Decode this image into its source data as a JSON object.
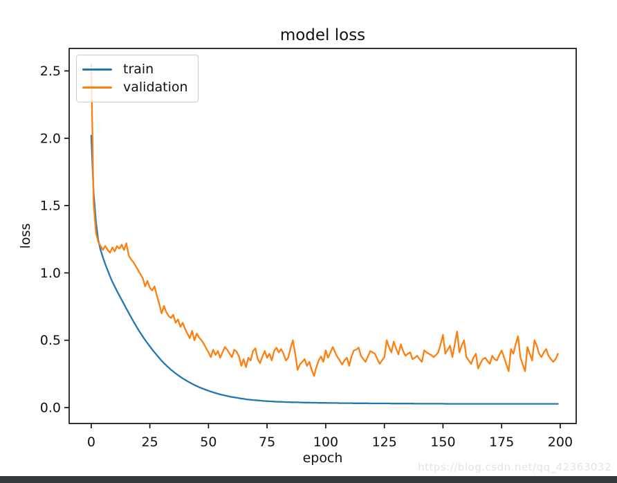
{
  "page": {
    "background": "#ffffff",
    "bottom_bar_color": "#35383c"
  },
  "watermark": {
    "text": "https://blog.csdn.net/qq_42363032",
    "color": "#e2e4e6"
  },
  "chart_data": {
    "type": "line",
    "title": "model loss",
    "xlabel": "epoch",
    "ylabel": "loss",
    "xlim": [
      -9.4,
      206.8
    ],
    "ylim": [
      -0.118,
      2.667
    ],
    "x_ticks": [
      0,
      25,
      50,
      75,
      100,
      125,
      150,
      175,
      200
    ],
    "x_tick_labels": [
      "0",
      "25",
      "50",
      "75",
      "100",
      "125",
      "150",
      "175",
      "200"
    ],
    "y_ticks": [
      0.0,
      0.5,
      1.0,
      1.5,
      2.0,
      2.5
    ],
    "y_tick_labels": [
      "0.0",
      "0.5",
      "1.0",
      "1.5",
      "2.0",
      "2.5"
    ],
    "grid": false,
    "frame_color": "#000000",
    "text_color": "#111111",
    "legend": {
      "position": "upper left",
      "entries": [
        {
          "name": "train",
          "color": "#1f77b4"
        },
        {
          "name": "validation",
          "color": "#ff7f0e"
        }
      ]
    },
    "x_start": 0,
    "x_step": 1,
    "series": [
      {
        "name": "train",
        "color": "#1f77b4",
        "values": [
          2.02,
          1.6,
          1.38,
          1.245,
          1.17,
          1.115,
          1.065,
          1.02,
          0.975,
          0.935,
          0.9,
          0.865,
          0.832,
          0.8,
          0.768,
          0.735,
          0.703,
          0.671,
          0.64,
          0.61,
          0.581,
          0.553,
          0.527,
          0.502,
          0.478,
          0.455,
          0.432,
          0.41,
          0.389,
          0.368,
          0.348,
          0.33,
          0.313,
          0.297,
          0.282,
          0.268,
          0.254,
          0.241,
          0.229,
          0.217,
          0.206,
          0.196,
          0.186,
          0.177,
          0.168,
          0.16,
          0.152,
          0.145,
          0.138,
          0.131,
          0.125,
          0.119,
          0.113,
          0.108,
          0.103,
          0.098,
          0.094,
          0.09,
          0.086,
          0.082,
          0.079,
          0.076,
          0.073,
          0.07,
          0.067,
          0.065,
          0.062,
          0.06,
          0.058,
          0.056,
          0.055,
          0.053,
          0.052,
          0.05,
          0.049,
          0.048,
          0.047,
          0.046,
          0.045,
          0.044,
          0.043,
          0.043,
          0.042,
          0.041,
          0.041,
          0.04,
          0.04,
          0.039,
          0.039,
          0.038,
          0.038,
          0.037,
          0.037,
          0.037,
          0.036,
          0.036,
          0.036,
          0.035,
          0.035,
          0.035,
          0.035,
          0.034,
          0.034,
          0.034,
          0.034,
          0.034,
          0.033,
          0.033,
          0.033,
          0.033,
          0.033,
          0.033,
          0.032,
          0.032,
          0.032,
          0.032,
          0.032,
          0.032,
          0.032,
          0.031,
          0.031,
          0.031,
          0.031,
          0.031,
          0.031,
          0.031,
          0.031,
          0.031,
          0.03,
          0.03,
          0.03,
          0.03,
          0.03,
          0.03,
          0.03,
          0.03,
          0.03,
          0.03,
          0.029,
          0.029,
          0.029,
          0.029,
          0.029,
          0.029,
          0.029,
          0.029,
          0.029,
          0.029,
          0.029,
          0.029,
          0.029,
          0.028,
          0.028,
          0.028,
          0.028,
          0.028,
          0.028,
          0.028,
          0.028,
          0.028,
          0.028,
          0.028,
          0.028,
          0.028,
          0.028,
          0.028,
          0.028,
          0.028,
          0.028,
          0.028,
          0.028,
          0.028,
          0.028,
          0.028,
          0.028,
          0.028,
          0.028,
          0.028,
          0.028,
          0.028,
          0.028,
          0.028,
          0.028,
          0.028,
          0.028,
          0.028,
          0.028,
          0.028,
          0.028,
          0.028,
          0.028,
          0.028,
          0.028,
          0.028,
          0.028,
          0.028,
          0.028,
          0.028,
          0.028,
          0.028
        ]
      },
      {
        "name": "validation",
        "color": "#ff7f0e",
        "values": [
          2.55,
          1.52,
          1.3,
          1.23,
          1.2,
          1.17,
          1.2,
          1.17,
          1.15,
          1.19,
          1.16,
          1.2,
          1.18,
          1.21,
          1.17,
          1.22,
          1.13,
          1.1,
          1.08,
          1.05,
          1.02,
          0.99,
          0.96,
          0.9,
          0.94,
          0.89,
          0.87,
          0.9,
          0.83,
          0.77,
          0.7,
          0.755,
          0.71,
          0.68,
          0.665,
          0.69,
          0.63,
          0.655,
          0.6,
          0.63,
          0.585,
          0.55,
          0.515,
          0.57,
          0.5,
          0.55,
          0.52,
          0.5,
          0.475,
          0.44,
          0.41,
          0.375,
          0.43,
          0.39,
          0.42,
          0.37,
          0.41,
          0.45,
          0.43,
          0.4,
          0.375,
          0.43,
          0.415,
          0.38,
          0.31,
          0.36,
          0.3,
          0.37,
          0.35,
          0.42,
          0.44,
          0.36,
          0.33,
          0.38,
          0.42,
          0.37,
          0.4,
          0.35,
          0.42,
          0.445,
          0.41,
          0.435,
          0.4,
          0.35,
          0.37,
          0.44,
          0.5,
          0.4,
          0.28,
          0.32,
          0.34,
          0.36,
          0.31,
          0.34,
          0.28,
          0.235,
          0.3,
          0.35,
          0.38,
          0.34,
          0.425,
          0.37,
          0.41,
          0.45,
          0.41,
          0.375,
          0.35,
          0.32,
          0.35,
          0.37,
          0.31,
          0.38,
          0.425,
          0.43,
          0.445,
          0.385,
          0.36,
          0.34,
          0.38,
          0.42,
          0.41,
          0.4,
          0.36,
          0.325,
          0.35,
          0.375,
          0.5,
          0.45,
          0.41,
          0.49,
          0.44,
          0.395,
          0.47,
          0.42,
          0.385,
          0.4,
          0.41,
          0.36,
          0.37,
          0.385,
          0.36,
          0.34,
          0.425,
          0.41,
          0.4,
          0.39,
          0.375,
          0.39,
          0.41,
          0.47,
          0.54,
          0.4,
          0.43,
          0.46,
          0.375,
          0.47,
          0.565,
          0.41,
          0.46,
          0.5,
          0.375,
          0.35,
          0.325,
          0.37,
          0.4,
          0.29,
          0.33,
          0.36,
          0.37,
          0.345,
          0.325,
          0.385,
          0.36,
          0.35,
          0.39,
          0.425,
          0.375,
          0.32,
          0.27,
          0.435,
          0.4,
          0.47,
          0.53,
          0.375,
          0.32,
          0.27,
          0.45,
          0.4,
          0.35,
          0.5,
          0.46,
          0.4,
          0.375,
          0.41,
          0.435,
          0.385,
          0.36,
          0.34,
          0.36,
          0.4
        ]
      }
    ]
  }
}
